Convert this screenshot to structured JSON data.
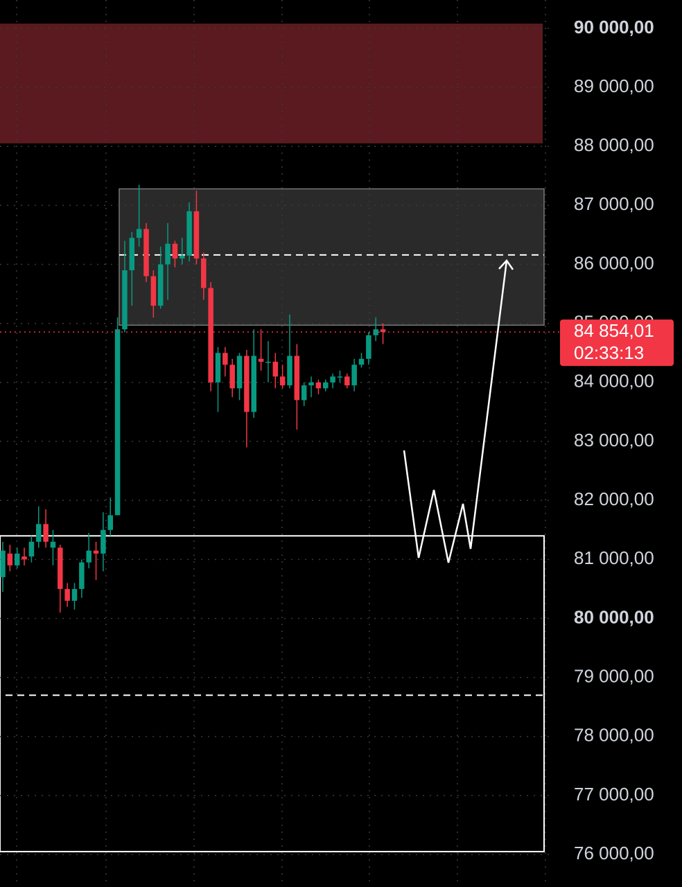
{
  "chart_data": {
    "type": "candlestick",
    "categories": [
      null,
      null,
      null,
      null,
      null,
      null,
      null,
      null,
      null,
      null,
      null,
      null,
      null,
      null,
      null,
      null,
      null,
      null,
      null,
      null,
      null,
      null,
      null,
      null,
      null,
      null,
      null,
      null,
      null,
      null,
      null,
      null,
      null,
      null,
      null,
      null,
      null,
      null,
      null,
      null,
      null,
      null,
      null,
      null,
      null,
      null,
      null,
      null,
      null,
      null,
      null,
      null,
      null,
      null
    ],
    "open": [
      80700,
      81100,
      80900,
      81050,
      81050,
      81300,
      81600,
      81200,
      81200,
      80500,
      80300,
      80500,
      80950,
      81150,
      81100,
      81500,
      81750,
      84900,
      85900,
      86450,
      86600,
      85800,
      85300,
      86000,
      86350,
      86100,
      86150,
      86900,
      86100,
      85600,
      84000,
      84500,
      84300,
      83900,
      84450,
      83500,
      84400,
      84350,
      84350,
      84100,
      83950,
      84450,
      83700,
      83950,
      84000,
      83900,
      84000,
      84100,
      84100,
      83950,
      84300,
      84400,
      84800,
      84900
    ],
    "high": [
      81300,
      81250,
      81200,
      81200,
      81400,
      81900,
      81850,
      81500,
      81250,
      80600,
      80600,
      81000,
      81450,
      81300,
      81800,
      82050,
      85100,
      86400,
      86550,
      87350,
      86700,
      85900,
      86300,
      86700,
      86400,
      86450,
      87050,
      87250,
      86200,
      85700,
      84600,
      84600,
      84400,
      84500,
      84550,
      84900,
      84900,
      84700,
      84500,
      84300,
      85150,
      84650,
      84000,
      84100,
      84050,
      84050,
      84150,
      84200,
      84150,
      84400,
      84500,
      84850,
      85100,
      85000
    ],
    "low": [
      80450,
      80800,
      80850,
      80900,
      80950,
      81200,
      81200,
      80900,
      80100,
      80200,
      80150,
      80350,
      80850,
      80650,
      80800,
      81400,
      81750,
      84850,
      85300,
      86300,
      85700,
      85100,
      85250,
      85400,
      85950,
      86000,
      86050,
      86000,
      85400,
      83850,
      83500,
      84100,
      83750,
      83700,
      82900,
      83400,
      84200,
      84000,
      83900,
      83900,
      83900,
      83200,
      83600,
      83750,
      83800,
      83850,
      83900,
      84000,
      83900,
      83850,
      84250,
      84300,
      84700,
      84650
    ],
    "close": [
      81150,
      80900,
      81100,
      81000,
      81300,
      81600,
      81300,
      81300,
      80500,
      80300,
      80500,
      80950,
      81150,
      81100,
      81500,
      81750,
      84900,
      85900,
      86450,
      86600,
      85800,
      85300,
      86000,
      86350,
      86100,
      86150,
      86900,
      86100,
      85600,
      84000,
      84500,
      84300,
      83900,
      84450,
      83500,
      84450,
      84350,
      84350,
      84100,
      83950,
      84450,
      83700,
      83950,
      84000,
      83900,
      84000,
      84100,
      84100,
      83950,
      84300,
      84400,
      84800,
      84900,
      84854.01
    ],
    "up_color": "#089981",
    "down_color": "#f23645",
    "ylim": [
      75450,
      90480
    ],
    "yticks": [
      {
        "value": 90000,
        "label": "90 000,00"
      },
      {
        "value": 89000,
        "label": "89 000,00"
      },
      {
        "value": 88000,
        "label": "88 000,00"
      },
      {
        "value": 87000,
        "label": "87 000,00"
      },
      {
        "value": 86000,
        "label": "86 000,00"
      },
      {
        "value": 85000,
        "label": "85 000,00"
      },
      {
        "value": 84000,
        "label": "84 000,00"
      },
      {
        "value": 83000,
        "label": "83 000,00"
      },
      {
        "value": 82000,
        "label": "82 000,00"
      },
      {
        "value": 81000,
        "label": "81 000,00"
      },
      {
        "value": 80000,
        "label": "80 000,00"
      },
      {
        "value": 79000,
        "label": "79 000,00"
      },
      {
        "value": 78000,
        "label": "78 000,00"
      },
      {
        "value": 77000,
        "label": "77 000,00"
      },
      {
        "value": 76000,
        "label": "76 000,00"
      }
    ],
    "grid": true,
    "last_price": 84854.01,
    "last_price_label": "84 854,01",
    "countdown": "02:33:13",
    "zones": [
      {
        "top": 90080,
        "bottom": 88050,
        "color": "#5a1a1f"
      },
      {
        "top": 87280,
        "bottom": 84970,
        "color": "#2a2a2a"
      },
      {
        "top": 81400,
        "bottom": 76050,
        "color": "none"
      }
    ],
    "levels": [
      86160,
      78700
    ]
  }
}
